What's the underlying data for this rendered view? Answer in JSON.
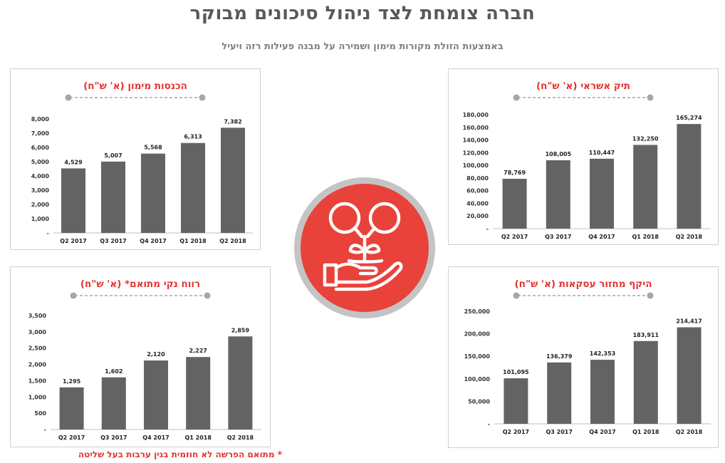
{
  "page": {
    "title": "חברה צומחת לצד ניהול סיכונים מבוקר",
    "subtitle": "באמצעות הזולת מקורות מימון ושמירה על מבנה פעילות רזה ויעיל",
    "footnote": "* מתואם הפרשה לא חוזמית בגין ערבות בעל שליטה"
  },
  "colors": {
    "bar": "#636363",
    "title_red": "#e3342f",
    "center_red": "#e8423b",
    "ring_gray": "#c4c4c4",
    "dash_gray": "#a6a6a6"
  },
  "center_icon": "hand-holding-plant-icon",
  "chart_data": [
    {
      "id": "credit-portfolio",
      "type": "bar",
      "title": "תיק אשראי (א' ש\"ח)",
      "categories": [
        "Q2 2017",
        "Q3 2017",
        "Q4 2017",
        "Q1 2018",
        "Q2 2018"
      ],
      "values": [
        78769,
        108005,
        110447,
        132250,
        165274
      ],
      "value_labels": [
        "78,769",
        "108,005",
        "110,447",
        "132,250",
        "165,274"
      ],
      "ylim": [
        0,
        180000
      ],
      "yticks": [
        0,
        20000,
        40000,
        60000,
        80000,
        100000,
        120000,
        140000,
        160000,
        180000
      ],
      "ytick_labels": [
        "-",
        "20,000",
        "40,000",
        "60,000",
        "80,000",
        "100,000",
        "120,000",
        "140,000",
        "160,000",
        "180,000"
      ],
      "xlabel": "",
      "ylabel": "",
      "grid": false,
      "legend": "none"
    },
    {
      "id": "financing-income",
      "type": "bar",
      "title": "הכנסות מימון (א' ש\"ח)",
      "categories": [
        "Q2 2017",
        "Q3 2017",
        "Q4 2017",
        "Q1 2018",
        "Q2 2018"
      ],
      "values": [
        4529,
        5007,
        5568,
        6313,
        7382
      ],
      "value_labels": [
        "4,529",
        "5,007",
        "5,568",
        "6,313",
        "7,382"
      ],
      "ylim": [
        0,
        8000
      ],
      "yticks": [
        0,
        1000,
        2000,
        3000,
        4000,
        5000,
        6000,
        7000,
        8000
      ],
      "ytick_labels": [
        "-",
        "1,000",
        "2,000",
        "3,000",
        "4,000",
        "5,000",
        "6,000",
        "7,000",
        "8,000"
      ],
      "xlabel": "",
      "ylabel": "",
      "grid": false,
      "legend": "none"
    },
    {
      "id": "transaction-volume",
      "type": "bar",
      "title": "היקף מחזור עסקאות (א' ש\"ח)",
      "categories": [
        "Q2 2017",
        "Q3 2017",
        "Q4 2017",
        "Q1 2018",
        "Q2 2018"
      ],
      "values": [
        101095,
        136379,
        142353,
        183911,
        214417
      ],
      "value_labels": [
        "101,095",
        "136,379",
        "142,353",
        "183,911",
        "214,417"
      ],
      "ylim": [
        0,
        250000
      ],
      "yticks": [
        0,
        50000,
        100000,
        150000,
        200000,
        250000
      ],
      "ytick_labels": [
        "-",
        "50,000",
        "100,000",
        "150,000",
        "200,000",
        "250,000"
      ],
      "xlabel": "",
      "ylabel": "",
      "grid": false,
      "legend": "none"
    },
    {
      "id": "adjusted-net-profit",
      "type": "bar",
      "title": "רווח נקי מתואם* (א' ש\"ח)",
      "categories": [
        "Q2 2017",
        "Q3 2017",
        "Q4 2017",
        "Q1 2018",
        "Q2 2018"
      ],
      "values": [
        1295,
        1602,
        2120,
        2227,
        2859
      ],
      "value_labels": [
        "1,295",
        "1,602",
        "2,120",
        "2,227",
        "2,859"
      ],
      "ylim": [
        0,
        3500
      ],
      "yticks": [
        0,
        500,
        1000,
        1500,
        2000,
        2500,
        3000,
        3500
      ],
      "ytick_labels": [
        "-",
        "500",
        "1,000",
        "1,500",
        "2,000",
        "2,500",
        "3,000",
        "3,500"
      ],
      "xlabel": "",
      "ylabel": "",
      "grid": false,
      "legend": "none"
    }
  ]
}
